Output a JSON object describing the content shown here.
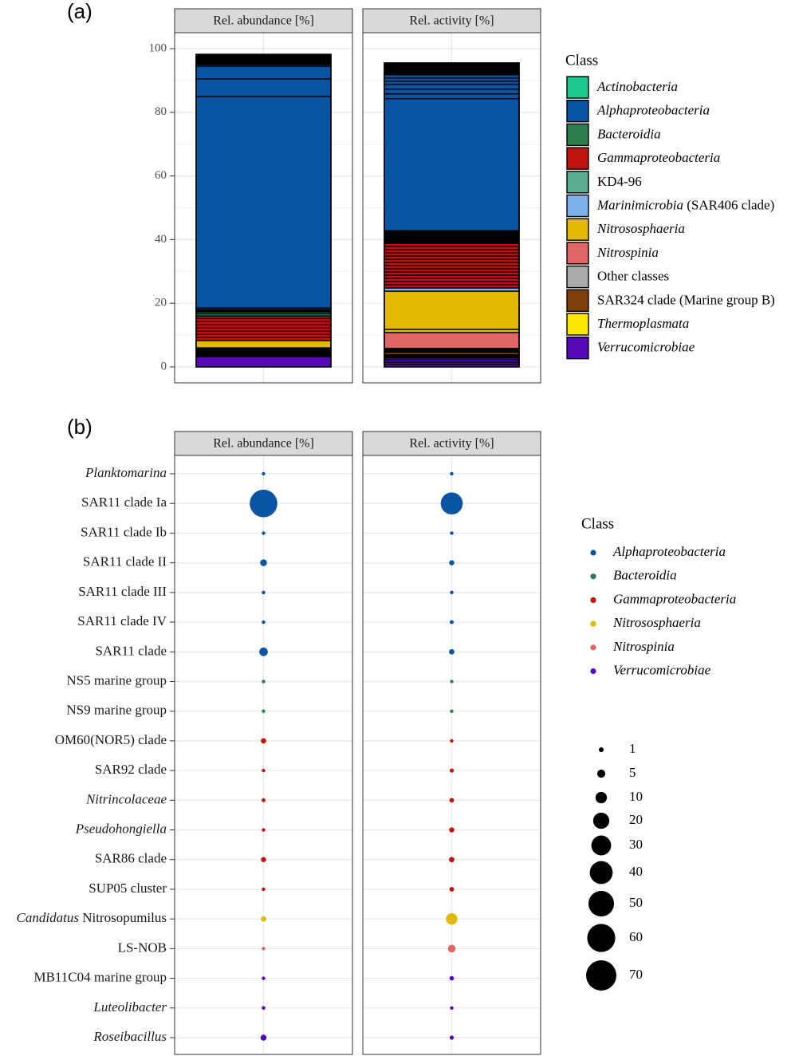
{
  "colors": {
    "Actinobacteria": "#1dc98d",
    "Alphaproteobacteria": "#0a54a4",
    "Bacteroidia": "#2e7d4c",
    "Gammaproteobacteria": "#c0120e",
    "KD4-96": "#5aab91",
    "Marinimicrobia": "#7db3ec",
    "Nitrososphaeria": "#e2b800",
    "Nitrospinia": "#e06666",
    "Other classes": "#aaaaaa",
    "SAR324": "#7f3f0a",
    "Thermoplasmata": "#fde600",
    "Verrucomicrobiae": "#5409b5",
    "Unassigned": "#000000"
  },
  "chart_data": [
    {
      "type": "bar",
      "panel_label": "(a)",
      "facets": [
        "Rel. abundance [%]",
        "Rel. activity [%]"
      ],
      "ylim": [
        0,
        100
      ],
      "yticks": [
        "0",
        "20",
        "40",
        "60",
        "80",
        "100"
      ],
      "grid": true,
      "legend": {
        "title": "Class",
        "position": "right",
        "items": [
          {
            "key": "Actinobacteria",
            "italic": "Actinobacteria",
            "plain": ""
          },
          {
            "key": "Alphaproteobacteria",
            "italic": "Alphaproteobacteria",
            "plain": ""
          },
          {
            "key": "Bacteroidia",
            "italic": "Bacteroidia",
            "plain": ""
          },
          {
            "key": "Gammaproteobacteria",
            "italic": "Gammaproteobacteria",
            "plain": ""
          },
          {
            "key": "KD4-96",
            "italic": "",
            "plain": "KD4-96"
          },
          {
            "key": "Marinimicrobia",
            "italic": "Marinimicrobia",
            "plain": " (SAR406 clade)"
          },
          {
            "key": "Nitrososphaeria",
            "italic": "Nitrososphaeria",
            "plain": ""
          },
          {
            "key": "Nitrospinia",
            "italic": "Nitrospinia",
            "plain": ""
          },
          {
            "key": "Other classes",
            "italic": "",
            "plain": "Other classes"
          },
          {
            "key": "SAR324",
            "italic": "",
            "plain": "SAR324 clade (Marine group B)"
          },
          {
            "key": "Thermoplasmata",
            "italic": "Thermoplasmata",
            "plain": ""
          },
          {
            "key": "Verrucomicrobiae",
            "italic": "Verrucomicrobiae",
            "plain": ""
          }
        ]
      },
      "stacks": [
        [
          {
            "cls": "Verrucomicrobiae",
            "value": 3.2
          },
          {
            "cls": "Unassigned",
            "value": 2.8
          },
          {
            "cls": "Nitrososphaeria",
            "value": 2.2
          },
          {
            "cls": "Gammaproteobacteria",
            "value": 1.0
          },
          {
            "cls": "Gammaproteobacteria",
            "value": 1.0
          },
          {
            "cls": "Gammaproteobacteria",
            "value": 1.0
          },
          {
            "cls": "Gammaproteobacteria",
            "value": 1.0
          },
          {
            "cls": "Gammaproteobacteria",
            "value": 1.0
          },
          {
            "cls": "Gammaproteobacteria",
            "value": 1.0
          },
          {
            "cls": "Gammaproteobacteria",
            "value": 1.0
          },
          {
            "cls": "Gammaproteobacteria",
            "value": 0.8
          },
          {
            "cls": "Bacteroidia",
            "value": 0.7
          },
          {
            "cls": "Bacteroidia",
            "value": 0.6
          },
          {
            "cls": "Unassigned",
            "value": 0.7
          },
          {
            "cls": "Alphaproteobacteria",
            "value": 0.5
          },
          {
            "cls": "Alphaproteobacteria",
            "value": 66.5
          },
          {
            "cls": "Alphaproteobacteria",
            "value": 5.5
          },
          {
            "cls": "Alphaproteobacteria",
            "value": 4.0
          },
          {
            "cls": "Alphaproteobacteria",
            "value": 0.5
          },
          {
            "cls": "Unassigned",
            "value": 3.2
          }
        ],
        [
          {
            "cls": "Verrucomicrobiae",
            "value": 0.8
          },
          {
            "cls": "Verrucomicrobiae",
            "value": 0.7
          },
          {
            "cls": "Verrucomicrobiae",
            "value": 0.7
          },
          {
            "cls": "Verrucomicrobiae",
            "value": 0.6
          },
          {
            "cls": "Unassigned",
            "value": 1.0
          },
          {
            "cls": "SAR324",
            "value": 0.8
          },
          {
            "cls": "Unassigned",
            "value": 1.2
          },
          {
            "cls": "Nitrospinia",
            "value": 5.0
          },
          {
            "cls": "Nitrososphaeria",
            "value": 1.0
          },
          {
            "cls": "Nitrososphaeria",
            "value": 12.0
          },
          {
            "cls": "Marinimicrobia",
            "value": 1.0
          },
          {
            "cls": "Gammaproteobacteria",
            "value": 1.0
          },
          {
            "cls": "Gammaproteobacteria",
            "value": 1.0
          },
          {
            "cls": "Gammaproteobacteria",
            "value": 1.0
          },
          {
            "cls": "Gammaproteobacteria",
            "value": 1.0
          },
          {
            "cls": "Gammaproteobacteria",
            "value": 1.0
          },
          {
            "cls": "Gammaproteobacteria",
            "value": 1.0
          },
          {
            "cls": "Gammaproteobacteria",
            "value": 1.0
          },
          {
            "cls": "Gammaproteobacteria",
            "value": 1.0
          },
          {
            "cls": "Gammaproteobacteria",
            "value": 1.0
          },
          {
            "cls": "Gammaproteobacteria",
            "value": 1.0
          },
          {
            "cls": "Gammaproteobacteria",
            "value": 1.0
          },
          {
            "cls": "Gammaproteobacteria",
            "value": 1.0
          },
          {
            "cls": "Gammaproteobacteria",
            "value": 1.0
          },
          {
            "cls": "Gammaproteobacteria",
            "value": 1.0
          },
          {
            "cls": "Unassigned",
            "value": 4.0
          },
          {
            "cls": "Alphaproteobacteria",
            "value": 41.5
          },
          {
            "cls": "Alphaproteobacteria",
            "value": 1.5
          },
          {
            "cls": "Alphaproteobacteria",
            "value": 1.5
          },
          {
            "cls": "Alphaproteobacteria",
            "value": 1.5
          },
          {
            "cls": "Alphaproteobacteria",
            "value": 1.0
          },
          {
            "cls": "Alphaproteobacteria",
            "value": 1.0
          },
          {
            "cls": "Alphaproteobacteria",
            "value": 1.0
          },
          {
            "cls": "Unassigned",
            "value": 3.7
          }
        ]
      ]
    },
    {
      "type": "scatter",
      "panel_label": "(b)",
      "facets": [
        "Rel. abundance [%]",
        "Rel. activity [%]"
      ],
      "grid": true,
      "legend": {
        "title": "Class",
        "position": "right",
        "items": [
          {
            "key": "Alphaproteobacteria",
            "label": "Alphaproteobacteria"
          },
          {
            "key": "Bacteroidia",
            "label": "Bacteroidia"
          },
          {
            "key": "Gammaproteobacteria",
            "label": "Gammaproteobacteria"
          },
          {
            "key": "Nitrososphaeria",
            "label": "Nitrososphaeria"
          },
          {
            "key": "Nitrospinia",
            "label": "Nitrospinia"
          },
          {
            "key": "Verrucomicrobiae",
            "label": "Verrucomicrobiae"
          }
        ]
      },
      "size_legend": {
        "labels": [
          "1",
          "5",
          "10",
          "20",
          "30",
          "40",
          "50",
          "60",
          "70"
        ],
        "values": [
          1,
          5,
          10,
          20,
          30,
          40,
          50,
          60,
          70
        ]
      },
      "rows": [
        {
          "italic": "Planktomarina",
          "plain": "",
          "cls": "Alphaproteobacteria",
          "abundance": 0.5,
          "activity": 0.6
        },
        {
          "italic": "",
          "plain": "SAR11 clade Ia",
          "cls": "Alphaproteobacteria",
          "abundance": 58,
          "activity": 37
        },
        {
          "italic": "",
          "plain": "SAR11 clade Ib",
          "cls": "Alphaproteobacteria",
          "abundance": 0.6,
          "activity": 0.5
        },
        {
          "italic": "",
          "plain": "SAR11 clade II",
          "cls": "Alphaproteobacteria",
          "abundance": 3.5,
          "activity": 2.0
        },
        {
          "italic": "",
          "plain": "SAR11 clade III",
          "cls": "Alphaproteobacteria",
          "abundance": 1.0,
          "activity": 0.4
        },
        {
          "italic": "",
          "plain": "SAR11 clade IV",
          "cls": "Alphaproteobacteria",
          "abundance": 0.6,
          "activity": 1.2
        },
        {
          "italic": "",
          "plain": "SAR11 clade",
          "cls": "Alphaproteobacteria",
          "abundance": 5.5,
          "activity": 2.2
        },
        {
          "italic": "",
          "plain": "NS5 marine group",
          "cls": "Bacteroidia",
          "abundance": 1.0,
          "activity": 0.5
        },
        {
          "italic": "",
          "plain": "NS9 marine group",
          "cls": "Bacteroidia",
          "abundance": 0.7,
          "activity": 0.6
        },
        {
          "italic": "",
          "plain": "OM60(NOR5) clade",
          "cls": "Gammaproteobacteria",
          "abundance": 2.2,
          "activity": 0.6
        },
        {
          "italic": "",
          "plain": "SAR92 clade",
          "cls": "Gammaproteobacteria",
          "abundance": 0.9,
          "activity": 1.3
        },
        {
          "italic": "Nitrincolaceae",
          "plain": "",
          "cls": "Gammaproteobacteria",
          "abundance": 1.1,
          "activity": 1.6
        },
        {
          "italic": "Pseudohongiella",
          "plain": "",
          "cls": "Gammaproteobacteria",
          "abundance": 0.8,
          "activity": 2.0
        },
        {
          "italic": "",
          "plain": "SAR86 clade",
          "cls": "Gammaproteobacteria",
          "abundance": 2.0,
          "activity": 2.2
        },
        {
          "italic": "",
          "plain": "SUP05 cluster",
          "cls": "Gammaproteobacteria",
          "abundance": 0.9,
          "activity": 1.6
        },
        {
          "italic": "Candidatus",
          "plain": " Nitrosopumilus",
          "cls": "Nitrososphaeria",
          "abundance": 2.2,
          "activity": 10
        },
        {
          "italic": "",
          "plain": "LS-NOB",
          "cls": "Nitrospinia",
          "abundance": 0.4,
          "activity": 4.5
        },
        {
          "italic": "",
          "plain": "MB11C04 marine group",
          "cls": "Verrucomicrobiae",
          "abundance": 0.6,
          "activity": 1.5
        },
        {
          "italic": "Luteolibacter",
          "plain": "",
          "cls": "Verrucomicrobiae",
          "abundance": 1.0,
          "activity": 0.3
        },
        {
          "italic": "Roseibacillus",
          "plain": "",
          "cls": "Verrucomicrobiae",
          "abundance": 2.8,
          "activity": 1.3
        }
      ]
    }
  ]
}
